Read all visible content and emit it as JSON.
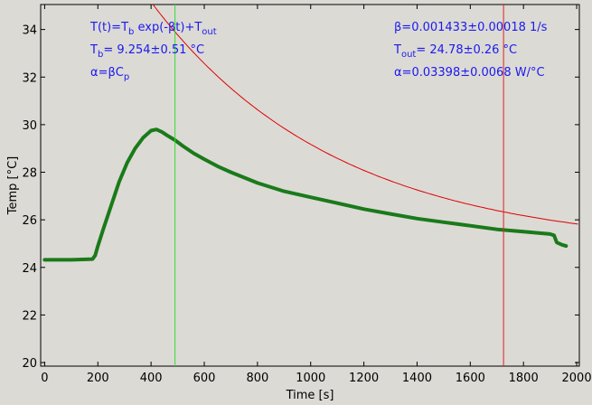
{
  "chart_data": {
    "type": "line",
    "xlabel": "Time [s]",
    "ylabel": "Temp [°C]",
    "xlim": [
      -15,
      2010
    ],
    "ylim": [
      19.85,
      35.05
    ],
    "xticks": [
      0,
      200,
      400,
      600,
      800,
      1000,
      1200,
      1400,
      1600,
      1800,
      2000
    ],
    "yticks": [
      20,
      22,
      24,
      26,
      28,
      30,
      32,
      34
    ],
    "grid": false,
    "colors": {
      "background": "#dcdad5",
      "data": "#1a7a1a",
      "fit": "#dd0000",
      "start_line": "#33dd33",
      "end_line": "#dd2222",
      "annotation": "#1a1aee"
    },
    "fit_model": {
      "Tb": 9.254,
      "beta": 0.001433,
      "Tout": 24.78,
      "t0": 480
    },
    "vertical_lines": [
      {
        "name": "fit start",
        "x": 490,
        "color": "#33dd33"
      },
      {
        "name": "fit end",
        "x": 1725,
        "color": "#dd2222"
      }
    ],
    "series": [
      {
        "type": "line",
        "points": [
          [
            0,
            24.32
          ],
          [
            100,
            24.32
          ],
          [
            180,
            24.35
          ],
          [
            190,
            24.5
          ],
          [
            200,
            24.9
          ],
          [
            220,
            25.6
          ],
          [
            250,
            26.6
          ],
          [
            280,
            27.6
          ],
          [
            310,
            28.4
          ],
          [
            340,
            29.0
          ],
          [
            370,
            29.45
          ],
          [
            400,
            29.75
          ],
          [
            420,
            29.8
          ],
          [
            440,
            29.7
          ],
          [
            460,
            29.55
          ],
          [
            490,
            29.35
          ],
          [
            520,
            29.1
          ],
          [
            560,
            28.8
          ],
          [
            600,
            28.55
          ],
          [
            650,
            28.25
          ],
          [
            700,
            28.0
          ],
          [
            800,
            27.55
          ],
          [
            900,
            27.2
          ],
          [
            1000,
            26.95
          ],
          [
            1100,
            26.7
          ],
          [
            1200,
            26.45
          ],
          [
            1300,
            26.25
          ],
          [
            1400,
            26.05
          ],
          [
            1500,
            25.9
          ],
          [
            1600,
            25.75
          ],
          [
            1700,
            25.6
          ],
          [
            1800,
            25.5
          ],
          [
            1900,
            25.4
          ],
          [
            1915,
            25.35
          ],
          [
            1925,
            25.05
          ],
          [
            1945,
            24.95
          ],
          [
            1960,
            24.9
          ]
        ]
      }
    ],
    "annotations": {
      "left": [
        {
          "key": "model",
          "runs": [
            {
              "t": "T(t)=T"
            },
            {
              "t": "b",
              "sub": true
            },
            {
              "t": " exp(-βt)+T"
            },
            {
              "t": "out",
              "sub": true
            }
          ]
        },
        {
          "key": "tb",
          "runs": [
            {
              "t": "T"
            },
            {
              "t": "b",
              "sub": true
            },
            {
              "t": "= 9.254±0.51 °C"
            }
          ]
        },
        {
          "key": "alpha_def",
          "runs": [
            {
              "t": "α=βC"
            },
            {
              "t": "p",
              "sub": true
            }
          ]
        }
      ],
      "right": [
        {
          "key": "beta",
          "runs": [
            {
              "t": "β=0.001433±0.00018 1/s"
            }
          ]
        },
        {
          "key": "tout",
          "runs": [
            {
              "t": "T"
            },
            {
              "t": "out",
              "sub": true
            },
            {
              "t": "= 24.78±0.26 °C"
            }
          ]
        },
        {
          "key": "alpha",
          "runs": [
            {
              "t": "α=0.03398±0.0068 W/°C"
            }
          ]
        }
      ]
    }
  }
}
